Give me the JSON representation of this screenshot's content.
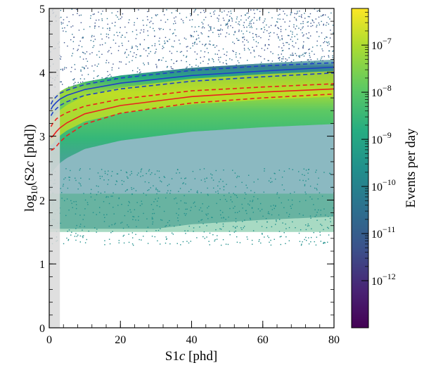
{
  "chart_data": {
    "type": "heatmap",
    "title": "",
    "xlabel": "S1c [phd]",
    "ylabel": "log10(S2c [phd])",
    "colorbar_label": "Events per day",
    "xlim": [
      0,
      80
    ],
    "ylim": [
      0,
      5
    ],
    "x_ticks": [
      0,
      20,
      40,
      60,
      80
    ],
    "y_ticks": [
      0,
      1,
      2,
      3,
      4,
      5
    ],
    "colorbar_scale": "log",
    "colorbar_range": [
      1e-13,
      6e-07
    ],
    "colorbar_ticks": [
      {
        "base": "10",
        "exp": "−7",
        "value_log10": -7
      },
      {
        "base": "10",
        "exp": "−8",
        "value_log10": -8
      },
      {
        "base": "10",
        "exp": "−9",
        "value_log10": -9
      },
      {
        "base": "10",
        "exp": "−10",
        "value_log10": -10
      },
      {
        "base": "10",
        "exp": "−11",
        "value_log10": -11
      },
      {
        "base": "10",
        "exp": "−12",
        "value_log10": -12
      }
    ],
    "colormap": "viridis",
    "shaded_region": {
      "x0": 0,
      "x1": 3,
      "color": "#d9d9d9"
    },
    "band_lines": [
      {
        "color": "#1f3fc8",
        "style": "solid",
        "x": [
          0.5,
          1,
          2,
          3,
          5,
          10,
          20,
          40,
          60,
          80
        ],
        "y": [
          3.42,
          3.47,
          3.53,
          3.58,
          3.64,
          3.73,
          3.83,
          3.95,
          4.02,
          4.08
        ]
      },
      {
        "color": "#1f3fc8",
        "style": "dashed",
        "x": [
          0.5,
          1,
          2,
          3,
          5,
          10,
          20,
          40,
          60,
          80
        ],
        "y": [
          3.5,
          3.56,
          3.62,
          3.67,
          3.72,
          3.81,
          3.91,
          4.03,
          4.1,
          4.15
        ]
      },
      {
        "color": "#1f3fc8",
        "style": "dashed",
        "x": [
          0.5,
          1,
          2,
          3,
          5,
          10,
          20,
          40,
          60,
          80
        ],
        "y": [
          3.32,
          3.37,
          3.43,
          3.48,
          3.54,
          3.64,
          3.74,
          3.86,
          3.93,
          3.99
        ]
      },
      {
        "color": "#e8221f",
        "style": "solid",
        "x": [
          0.5,
          1,
          2,
          3,
          5,
          10,
          20,
          40,
          60,
          80
        ],
        "y": [
          2.98,
          3.0,
          3.07,
          3.13,
          3.21,
          3.35,
          3.48,
          3.62,
          3.69,
          3.74
        ]
      },
      {
        "color": "#e8221f",
        "style": "dashed",
        "x": [
          0.5,
          1,
          2,
          3,
          5,
          10,
          20,
          40,
          60,
          80
        ],
        "y": [
          3.15,
          3.2,
          3.27,
          3.31,
          3.37,
          3.47,
          3.58,
          3.71,
          3.77,
          3.82
        ]
      },
      {
        "color": "#e8221f",
        "style": "dashed",
        "x": [
          0.5,
          1,
          2,
          3,
          5,
          10,
          20,
          40,
          60,
          80
        ],
        "y": [
          2.78,
          2.79,
          2.84,
          2.91,
          3.01,
          3.19,
          3.36,
          3.52,
          3.6,
          3.66
        ]
      }
    ],
    "density_features": [
      {
        "name": "main-band",
        "description": "dense band following the ER/NR bands",
        "x_range": [
          0,
          80
        ],
        "log10_s2_center_at_x": [
          [
            1,
            3.2
          ],
          [
            10,
            3.55
          ],
          [
            40,
            3.8
          ],
          [
            80,
            3.9
          ]
        ]
      },
      {
        "name": "low-s2-population",
        "log10_s2_range": [
          1.5,
          2.1
        ],
        "x_range": [
          0,
          80
        ]
      }
    ]
  }
}
